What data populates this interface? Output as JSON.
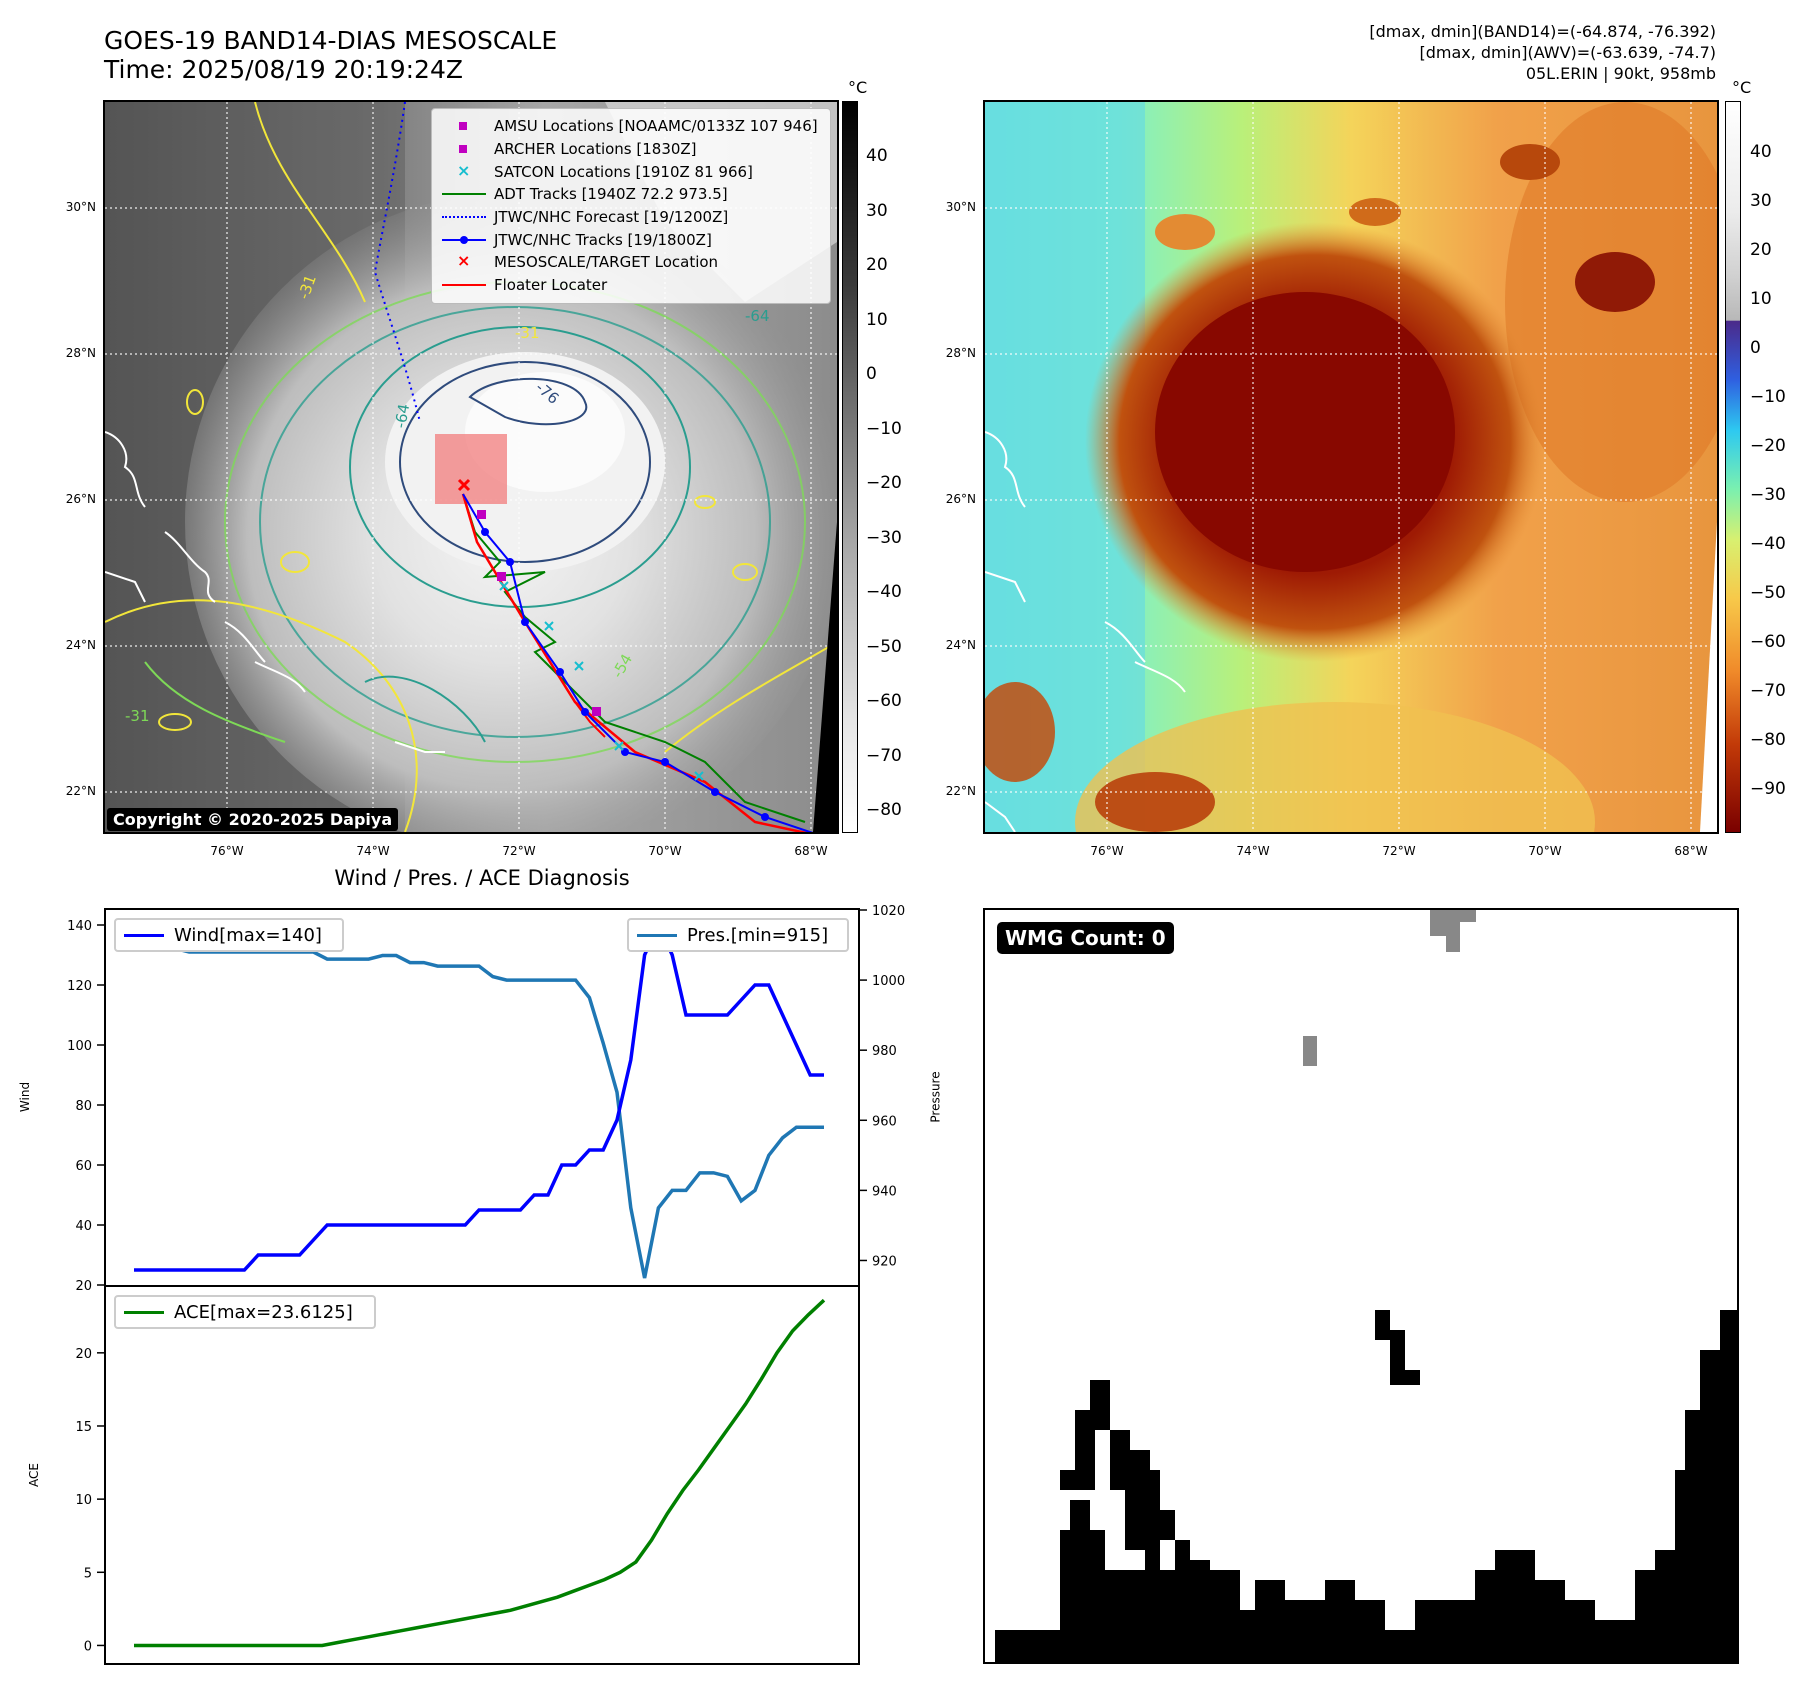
{
  "header": {
    "title_line1": "GOES-19 BAND14-DIAS MESOSCALE",
    "title_line2": "Time: 2025/08/19 20:19:24Z",
    "info_line1": "[dmax, dmin](BAND14)=(-64.874, -76.392)",
    "info_line2": "[dmax, dmin](AWV)=(-63.639, -74.7)",
    "info_line3": "05L.ERIN | 90kt, 958mb"
  },
  "map_axes": {
    "lat_labels": [
      "30°N",
      "28°N",
      "26°N",
      "24°N",
      "22°N"
    ],
    "lon_labels": [
      "76°W",
      "74°W",
      "72°W",
      "70°W",
      "68°W"
    ]
  },
  "left_map": {
    "colorbar_unit": "°C",
    "colorbar_ticks": [
      "40",
      "30",
      "20",
      "10",
      "0",
      "−10",
      "−20",
      "−30",
      "−40",
      "−50",
      "−60",
      "−70",
      "−80"
    ],
    "contour_labels": [
      "-31",
      "-64",
      "-76",
      "-64",
      "-31",
      "-54",
      "-31"
    ],
    "copyright": "Copyright © 2020-2025 Dapiya",
    "legend": [
      {
        "label": "AMSU Locations [NOAAMC/0133Z 107 946]",
        "symbol": "square",
        "color": "#c000c0"
      },
      {
        "label": "ARCHER Locations [1830Z]",
        "symbol": "square",
        "color": "#c000c0"
      },
      {
        "label": "SATCON Locations [1910Z 81 966]",
        "symbol": "x",
        "color": "#17becf"
      },
      {
        "label": "ADT Tracks [1940Z 72.2 973.5]",
        "symbol": "line",
        "color": "#008000"
      },
      {
        "label": "JTWC/NHC Forecast [19/1200Z]",
        "symbol": "dotted",
        "color": "#0000ff"
      },
      {
        "label": "JTWC/NHC Tracks [19/1800Z]",
        "symbol": "line-dot",
        "color": "#0000ff"
      },
      {
        "label": "MESOSCALE/TARGET Location",
        "symbol": "x",
        "color": "#ff0000"
      },
      {
        "label": "Floater Locater",
        "symbol": "line",
        "color": "#ff0000"
      }
    ]
  },
  "right_map": {
    "colorbar_unit": "°C",
    "colorbar_ticks": [
      "40",
      "30",
      "20",
      "10",
      "0",
      "−10",
      "−20",
      "−30",
      "−40",
      "−50",
      "−60",
      "−70",
      "−80",
      "−90"
    ]
  },
  "diagnosis": {
    "title": "Wind / Pres. / ACE Diagnosis",
    "wind_legend": "Wind[max=140]",
    "pres_legend": "Pres.[min=915]",
    "ace_legend": "ACE[max=23.6125]",
    "wind_axis_label": "Wind",
    "pres_axis_label": "Pressure",
    "ace_axis_label": "ACE",
    "wind_color": "#0000ff",
    "pres_color": "#1f77b4",
    "ace_color": "#008000"
  },
  "wmg": {
    "badge": "WMG Count: 0"
  },
  "chart_data": [
    {
      "type": "line",
      "title": "Wind / Pres. / ACE Diagnosis",
      "ylabel": "Wind",
      "ylim": [
        20,
        145
      ],
      "yticks": [
        20,
        40,
        60,
        80,
        100,
        120,
        140
      ],
      "series": [
        {
          "name": "Wind[max=140]",
          "axis": "left",
          "values": [
            25,
            25,
            25,
            25,
            25,
            25,
            25,
            25,
            25,
            30,
            30,
            30,
            30,
            35,
            40,
            40,
            40,
            40,
            40,
            40,
            40,
            40,
            40,
            40,
            40,
            45,
            45,
            45,
            45,
            50,
            50,
            60,
            60,
            65,
            65,
            75,
            95,
            130,
            140,
            130,
            110,
            110,
            110,
            110,
            115,
            120,
            120,
            110,
            100,
            90,
            90
          ]
        },
        {
          "name": "Pres.[min=915]",
          "axis": "right",
          "ylim": [
            913,
            1020
          ],
          "yticks": [
            920,
            940,
            960,
            980,
            1000,
            1020
          ],
          "values": [
            1014,
            1014,
            1010,
            1009,
            1008,
            1008,
            1008,
            1008,
            1008,
            1008,
            1008,
            1008,
            1008,
            1008,
            1006,
            1006,
            1006,
            1006,
            1007,
            1007,
            1005,
            1005,
            1004,
            1004,
            1004,
            1004,
            1001,
            1000,
            1000,
            1000,
            1000,
            1000,
            1000,
            995,
            982,
            968,
            935,
            915,
            935,
            940,
            940,
            945,
            945,
            944,
            937,
            940,
            950,
            955,
            958,
            958,
            958
          ]
        }
      ]
    },
    {
      "type": "line",
      "ylabel": "ACE",
      "ylim": [
        -1.2,
        24.5
      ],
      "yticks": [
        0,
        5,
        10,
        15,
        20
      ],
      "series": [
        {
          "name": "ACE[max=23.6125]",
          "values": [
            0,
            0,
            0,
            0,
            0,
            0,
            0,
            0,
            0,
            0,
            0,
            0,
            0,
            0.2,
            0.4,
            0.6,
            0.8,
            1.0,
            1.2,
            1.4,
            1.6,
            1.8,
            2.0,
            2.2,
            2.4,
            2.7,
            3.0,
            3.3,
            3.7,
            4.1,
            4.5,
            5.0,
            5.7,
            7.2,
            9.0,
            10.6,
            12.0,
            13.5,
            15.0,
            16.5,
            18.2,
            20.0,
            21.5,
            22.6,
            23.6
          ]
        }
      ]
    }
  ]
}
